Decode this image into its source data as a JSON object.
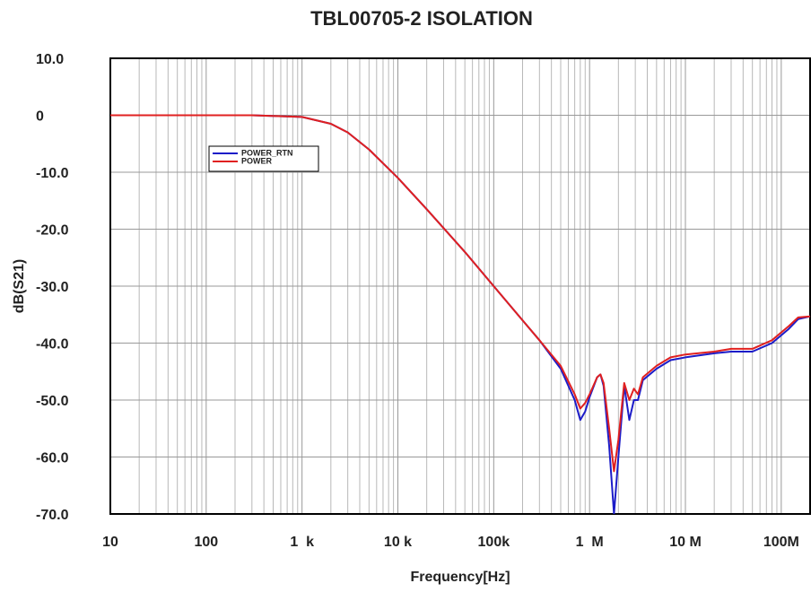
{
  "chart_data": {
    "type": "line",
    "title": "TBL00705-2 ISOLATION",
    "x_label": "Frequency[Hz]",
    "y_label": "dB(S21)",
    "x_log": true,
    "grid": true,
    "legend": "upper left",
    "xlim": [
      10,
      200000000
    ],
    "xticks": [
      10,
      100,
      {
        "value": 1000,
        "label": "1  k"
      },
      {
        "value": 10000,
        "label": "10 k"
      },
      {
        "value": 100000,
        "label": "100k"
      },
      {
        "value": 1000000,
        "label": "1  M"
      },
      {
        "value": 10000000,
        "label": "10 M"
      },
      {
        "value": 100000000,
        "label": "100M"
      }
    ],
    "ylim": [
      -70,
      10
    ],
    "yticks": [
      {
        "value": 10,
        "label": "10.0"
      },
      0,
      {
        "value": -10,
        "label": "-10.0"
      },
      {
        "value": -20,
        "label": "-20.0"
      },
      {
        "value": -30,
        "label": "-30.0"
      },
      {
        "value": -40,
        "label": "-40.0"
      },
      {
        "value": -50,
        "label": "-50.0"
      },
      {
        "value": -60,
        "label": "-60.0"
      },
      {
        "value": -70,
        "label": "-70.0"
      }
    ],
    "x": [
      10,
      100,
      300,
      1000,
      2000,
      3000,
      5000,
      10000,
      20000,
      50000,
      100000,
      200000,
      300000,
      500000,
      700000,
      800000,
      900000,
      1000000,
      1200000,
      1300000,
      1400000,
      1600000,
      1800000,
      2000000,
      2300000,
      2600000,
      2900000,
      3200000,
      3600000,
      5000000,
      7000000,
      10000000,
      20000000,
      30000000,
      50000000,
      80000000,
      120000000,
      150000000,
      200000000
    ],
    "series": [
      {
        "name": "POWER_RTN",
        "color": "#1c1cc8",
        "values": [
          0,
          0,
          0,
          -0.3,
          -1.5,
          -3,
          -6,
          -11,
          -16.5,
          -24,
          -30,
          -36,
          -39.5,
          -44.5,
          -50,
          -53.5,
          -52,
          -49.5,
          -46,
          -45.5,
          -47.5,
          -58,
          -70,
          -60,
          -47.5,
          -53.5,
          -50,
          -50,
          -46.5,
          -44.5,
          -43,
          -42.5,
          -41.8,
          -41.5,
          -41.5,
          -40,
          -37.5,
          -35.8,
          -35.3
        ]
      },
      {
        "name": "POWER",
        "color": "#e02020",
        "values": [
          0,
          0,
          0,
          -0.3,
          -1.5,
          -3,
          -6,
          -11,
          -16.5,
          -24,
          -30,
          -36,
          -39.5,
          -44,
          -49,
          -51.5,
          -50.5,
          -49,
          -46,
          -45.5,
          -47,
          -55,
          -62.5,
          -57,
          -47,
          -50,
          -48,
          -49,
          -46,
          -44,
          -42.5,
          -42,
          -41.5,
          -41,
          -41,
          -39.5,
          -37,
          -35.5,
          -35.3
        ]
      }
    ]
  }
}
